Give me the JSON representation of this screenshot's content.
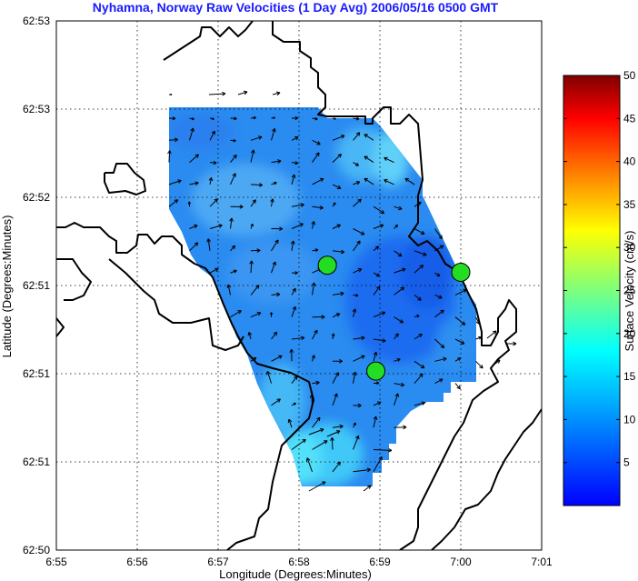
{
  "chart_data": {
    "type": "vector-field",
    "title": "Nyhamna, Norway Raw Velocities (1 Day Avg) 2006/05/16 0500 GMT",
    "title_color": "#1a1aff",
    "xlabel": "Longitude (Degrees:Minutes)",
    "ylabel": "Latitude (Degrees:Minutes)",
    "x_ticks": [
      "6:55",
      "6:56",
      "6:57",
      "6:58",
      "6:59",
      "7:00",
      "7:01"
    ],
    "y_ticks": [
      "62:53",
      "62:53",
      "62:52",
      "62:51",
      "62:51",
      "62:51",
      "62:50"
    ],
    "grid": true,
    "colorbar": {
      "label": "Surface Velocity (cm/s)",
      "ticks": [
        "50",
        "45",
        "40",
        "35",
        "30",
        "25",
        "20",
        "15",
        "10",
        "5"
      ],
      "range": [
        0,
        50
      ],
      "colormap": "jet"
    },
    "markers": [
      {
        "name": "site",
        "color": "#22dd22",
        "lon_min": 6.7,
        "lat_row": 3.23
      },
      {
        "name": "site",
        "color": "#22dd22",
        "lon_min": 7.9,
        "lat_row": 2.03
      },
      {
        "name": "site",
        "color": "#22dd22",
        "lon_min": 10.0,
        "lat_row": 3.15
      }
    ],
    "speed_range_shown": [
      2,
      12
    ]
  }
}
